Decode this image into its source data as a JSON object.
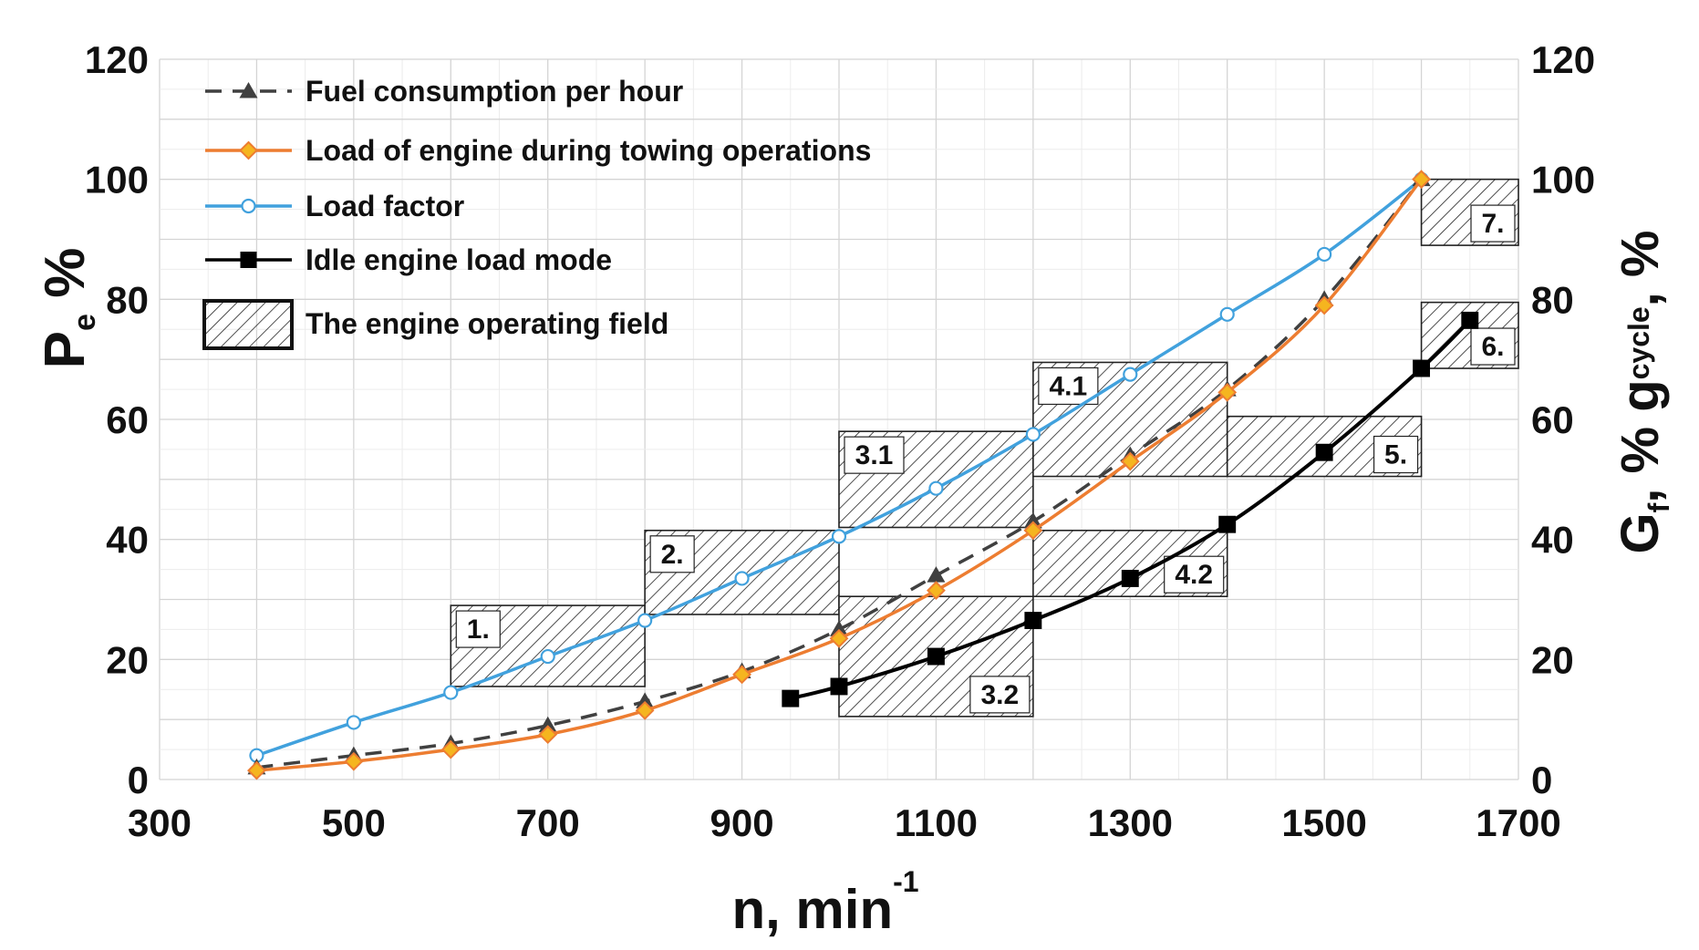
{
  "chart_data": {
    "type": "line",
    "xlabel_main": "n, min",
    "xlabel_sup": "-1",
    "ylabel_left_main": "P",
    "ylabel_left_sub": "e",
    "ylabel_left_suffix": " %",
    "ylabel_right_main": "G",
    "ylabel_right_sub1": "f",
    "ylabel_right_mid": ", % g",
    "ylabel_right_sub2": "cycle",
    "ylabel_right_suffix": ", %",
    "xlim": [
      300,
      1700
    ],
    "ylim": [
      0,
      120
    ],
    "x_ticks": [
      "300",
      "500",
      "700",
      "900",
      "1100",
      "1300",
      "1500",
      "1700"
    ],
    "y_ticks": [
      "0",
      "20",
      "40",
      "60",
      "80",
      "100",
      "120"
    ],
    "series": [
      {
        "name": "Fuel consumption per hour",
        "color": "#404040",
        "x": [
          400,
          500,
          600,
          700,
          800,
          900,
          1000,
          1100,
          1200,
          1300,
          1400,
          1500,
          1600
        ],
        "values": [
          2,
          4,
          6,
          9,
          13,
          18,
          25,
          34,
          43,
          54,
          65,
          80,
          100
        ]
      },
      {
        "name": "Load  of  engine during towing operations",
        "color": "#ed7d31",
        "x": [
          400,
          500,
          600,
          700,
          800,
          900,
          1000,
          1100,
          1200,
          1300,
          1400,
          1500,
          1600
        ],
        "values": [
          1.5,
          3,
          5,
          7.5,
          11.5,
          17.5,
          23.5,
          31.5,
          41.5,
          53,
          64.5,
          79,
          100
        ]
      },
      {
        "name": "Load factor",
        "color": "#41a1dd",
        "x": [
          400,
          500,
          600,
          700,
          800,
          900,
          1000,
          1100,
          1200,
          1300,
          1400,
          1500,
          1600
        ],
        "values": [
          4,
          9.5,
          14.5,
          20.5,
          26.5,
          33.5,
          40.5,
          48.5,
          57.5,
          67.5,
          77.5,
          87.5,
          100
        ]
      },
      {
        "name": "Idle engine load mode",
        "color": "#000000",
        "x": [
          950,
          1000,
          1100,
          1200,
          1300,
          1400,
          1500,
          1600,
          1650
        ],
        "values": [
          13.5,
          15.5,
          20.5,
          26.5,
          33.5,
          42.5,
          54.5,
          68.5,
          76.5
        ]
      }
    ],
    "operating_fields_legend": "The engine operating field",
    "operating_fields": [
      {
        "label": "1.",
        "x_range": [
          600,
          800
        ],
        "y_range": [
          15.5,
          29
        ]
      },
      {
        "label": "2.",
        "x_range": [
          800,
          1000
        ],
        "y_range": [
          27.5,
          41.5
        ]
      },
      {
        "label": "3.1",
        "x_range": [
          1000,
          1200
        ],
        "y_range": [
          42,
          58
        ]
      },
      {
        "label": "3.2",
        "x_range": [
          1000,
          1200
        ],
        "y_range": [
          10.5,
          30.5
        ]
      },
      {
        "label": "4.1",
        "x_range": [
          1200,
          1400
        ],
        "y_range": [
          50.5,
          69.5
        ]
      },
      {
        "label": "4.2",
        "x_range": [
          1200,
          1400
        ],
        "y_range": [
          30.5,
          41.5
        ]
      },
      {
        "label": "5.",
        "x_range": [
          1400,
          1600
        ],
        "y_range": [
          50.5,
          60.5
        ]
      },
      {
        "label": "6.",
        "x_range": [
          1600,
          1700
        ],
        "y_range": [
          68.5,
          79.5
        ]
      },
      {
        "label": "7.",
        "x_range": [
          1600,
          1700
        ],
        "y_range": [
          89,
          100
        ]
      }
    ],
    "grid": true,
    "legend_position": "top-left"
  }
}
